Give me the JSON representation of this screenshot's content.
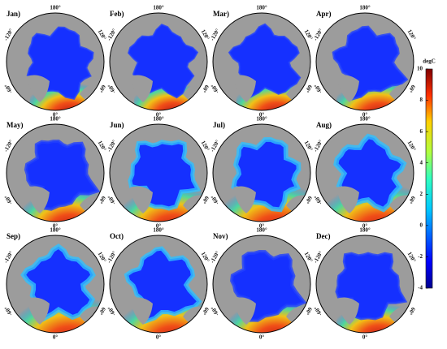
{
  "panels": [
    {
      "title": "Jan)"
    },
    {
      "title": "Feb)"
    },
    {
      "title": "Mar)"
    },
    {
      "title": "Apr)"
    },
    {
      "title": "May)"
    },
    {
      "title": "Jun)"
    },
    {
      "title": "Jul)"
    },
    {
      "title": "Aug)"
    },
    {
      "title": "Sep)"
    },
    {
      "title": "Oct)"
    },
    {
      "title": "Nov)"
    },
    {
      "title": "Dec)"
    }
  ],
  "longitude_labels": [
    "180°",
    "-120°",
    "120°",
    "-60°",
    "60°",
    "0°"
  ],
  "colorbar": {
    "label": "degC",
    "range": [
      -4,
      10
    ],
    "ticks": [
      -4,
      -2,
      0,
      2,
      4,
      6,
      8,
      10
    ]
  }
}
